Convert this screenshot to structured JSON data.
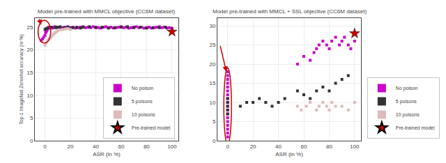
{
  "chart_data": [
    {
      "type": "scatter",
      "title": "Model pre-trained with MMCL objective (CC6M dataset)",
      "xlabel": "ASR (in %)",
      "ylabel": "Top-1 ImageNet Zeroshot accuracy (in %)",
      "series": [
        {
          "name": "No poison",
          "color": "#cc00cc",
          "marker": "square",
          "x": [
            -3,
            -2,
            -1,
            0,
            0.5,
            1,
            1.5,
            2,
            2.5,
            3,
            3.5,
            4,
            4.5,
            5,
            5.5,
            6,
            7,
            8,
            9,
            10,
            12,
            14,
            16,
            18,
            20,
            22,
            24,
            26,
            28,
            30,
            32,
            34,
            36,
            38,
            40,
            42,
            44,
            46,
            48,
            50,
            52,
            54,
            56,
            58,
            60,
            62,
            64,
            66,
            68,
            70,
            72,
            74,
            76,
            78,
            80,
            82,
            84,
            86,
            88,
            90,
            92,
            94,
            96,
            98,
            100
          ],
          "values": [
            22.1,
            22.4,
            22.8,
            23.2,
            23.8,
            24.0,
            24.3,
            24.6,
            24.8,
            25.0,
            24.9,
            24.8,
            24.9,
            25.0,
            24.8,
            24.9,
            25.0,
            25.1,
            24.9,
            25.0,
            24.8,
            24.9,
            25.0,
            25.1,
            24.9,
            25.0,
            24.8,
            24.9,
            25.0,
            25.1,
            24.9,
            25.0,
            24.9,
            25.1,
            25.0,
            24.9,
            24.8,
            25.0,
            25.1,
            24.9,
            25.0,
            24.8,
            24.9,
            25.0,
            25.1,
            24.9,
            25.0,
            24.8,
            24.9,
            25.0,
            25.1,
            24.9,
            25.0,
            24.8,
            24.9,
            25.0,
            24.8,
            24.9,
            25.0,
            25.1,
            24.9,
            25.0,
            24.8,
            24.9,
            24.7
          ]
        },
        {
          "name": "5 poisons",
          "color": "#333333",
          "marker": "square",
          "x": [
            0,
            1,
            2,
            5,
            8,
            10,
            12,
            15,
            18,
            20,
            22,
            25,
            28,
            30,
            35,
            40,
            45,
            50,
            55,
            60,
            65,
            70,
            75,
            80,
            85,
            90,
            95,
            100
          ],
          "values": [
            24.5,
            24.7,
            24.8,
            25.0,
            24.9,
            25.0,
            25.1,
            24.9,
            25.0,
            24.8,
            24.9,
            25.0,
            24.8,
            25.0,
            25.1,
            24.9,
            25.0,
            24.8,
            24.9,
            25.0,
            25.1,
            24.9,
            25.0,
            24.8,
            24.9,
            24.9,
            25.0,
            24.0
          ]
        },
        {
          "name": "10 poisons",
          "color": "#ddbbbb",
          "marker": "square",
          "x": [
            0,
            1,
            2,
            3,
            4,
            5,
            6,
            7,
            8,
            9,
            10,
            12,
            14,
            16,
            18,
            20
          ],
          "values": [
            21.0,
            21.5,
            22.0,
            22.3,
            22.6,
            22.9,
            23.2,
            23.5,
            23.8,
            24.0,
            24.2,
            24.4,
            24.5,
            24.6,
            24.7,
            24.5
          ]
        },
        {
          "name": "Pre-trained model",
          "color": "#cc0000",
          "marker": "star",
          "x": [
            100
          ],
          "values": [
            24.0
          ]
        }
      ],
      "xlim": [
        -8,
        105
      ],
      "ylim": [
        0,
        27
      ],
      "xticks": [
        0,
        20,
        40,
        60,
        80,
        100
      ],
      "yticks": [
        0,
        5,
        10,
        15,
        20,
        25
      ],
      "grid": true,
      "legend": "lower right",
      "ellipse": {
        "x": -0.5,
        "y": 24.0,
        "rx": 5,
        "ry": 2.5,
        "color": "#cc0000"
      },
      "arrow": {
        "x1": -5,
        "y1": 27,
        "x2": -3,
        "y2": 25.5,
        "color": "#cc0000"
      }
    },
    {
      "type": "scatter",
      "title": "Model pre-trained with MMCL + SSL objective (CC6M dataset)",
      "xlabel": "ASR (in %)",
      "series": [
        {
          "name": "No poison",
          "color": "#cc00cc",
          "marker": "square",
          "x": [
            0,
            0,
            0,
            0,
            0,
            0,
            0,
            0,
            0,
            0,
            0,
            0,
            0,
            0,
            0,
            0,
            0,
            0,
            55,
            60,
            65,
            68,
            70,
            72,
            75,
            78,
            80,
            82,
            85,
            88,
            90,
            92,
            95,
            97,
            100,
            100
          ],
          "values": [
            1,
            2,
            3,
            4,
            5,
            6,
            7,
            8,
            9,
            10,
            11,
            12,
            13,
            14,
            15,
            16,
            17,
            18,
            20,
            22,
            21,
            23,
            24,
            25,
            26,
            25,
            24,
            26,
            27,
            25,
            26,
            27,
            25,
            24,
            26,
            28
          ]
        },
        {
          "name": "5 poisons",
          "color": "#333333",
          "marker": "square",
          "x": [
            0,
            0,
            0,
            0,
            0,
            10,
            15,
            20,
            25,
            30,
            35,
            40,
            45,
            55,
            60,
            65,
            70,
            75,
            80,
            85,
            90,
            95,
            100
          ],
          "values": [
            7,
            8,
            9,
            10,
            11,
            9,
            10,
            10,
            11,
            10,
            9,
            10,
            11,
            13,
            12,
            11,
            13,
            14,
            13,
            15,
            16,
            17,
            28
          ]
        },
        {
          "name": "10 poisons",
          "color": "#ddbbbb",
          "marker": "square",
          "x": [
            55,
            58,
            62,
            65,
            70,
            72,
            75,
            78,
            80,
            82,
            85,
            90,
            95,
            100
          ],
          "values": [
            9,
            8,
            9,
            10,
            8,
            9,
            10,
            9,
            8,
            10,
            9,
            9,
            8,
            10
          ]
        },
        {
          "name": "Pre-trained model",
          "color": "#cc0000",
          "marker": "star",
          "x": [
            100
          ],
          "values": [
            28
          ]
        }
      ],
      "xlim": [
        -8,
        105
      ],
      "ylim": [
        0,
        32
      ],
      "xticks": [
        0,
        20,
        40,
        60,
        80,
        100
      ],
      "yticks": [
        0,
        5,
        10,
        15,
        20,
        25,
        30
      ],
      "grid": true,
      "legend": "lower right",
      "ellipse": {
        "x": 0,
        "y": 9,
        "rx": 3,
        "ry": 10,
        "color": "#cc0000"
      },
      "arrow": {
        "x1": -6,
        "y1": 25,
        "x2": -1,
        "y2": 18,
        "color": "#cc0000"
      }
    }
  ]
}
